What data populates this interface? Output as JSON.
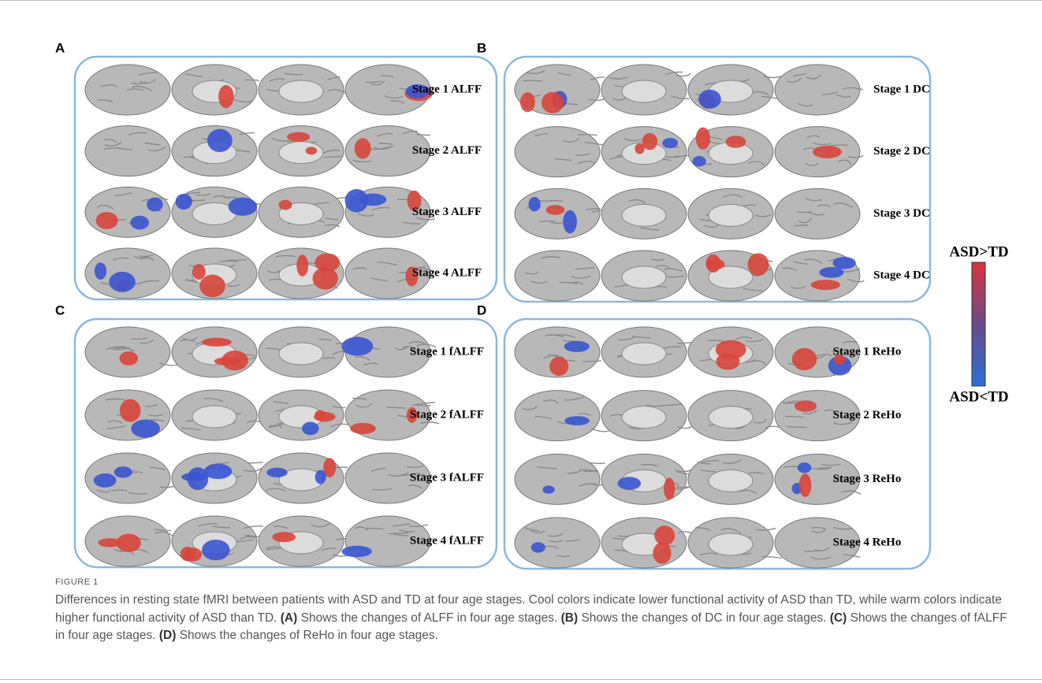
{
  "panels": [
    {
      "letter": "A",
      "rows": [
        "Stage 1 ALFF",
        "Stage 2 ALFF",
        "Stage 3 ALFF",
        "Stage 4 ALFF"
      ]
    },
    {
      "letter": "B",
      "rows": [
        "Stage 1 DC",
        "Stage 2 DC",
        "Stage 3 DC",
        "Stage 4 DC"
      ]
    },
    {
      "letter": "C",
      "rows": [
        "Stage 1 fALFF",
        "Stage 2 fALFF",
        "Stage 3 fALFF",
        "Stage 4 fALFF"
      ]
    },
    {
      "letter": "D",
      "rows": [
        "Stage 1 ReHo",
        "Stage 2 ReHo",
        "Stage 3 ReHo",
        "Stage 4 ReHo"
      ]
    }
  ],
  "colorbar": {
    "top": "ASD>TD",
    "bottom": "ASD<TD"
  },
  "caption": {
    "label": "FIGURE 1",
    "text": "Differences in resting state fMRI between patients with ASD and TD at four age stages. Cool colors indicate lower functional activity of ASD than TD, while warm colors indicate higher functional activity of ASD than TD.",
    "items": [
      {
        "letter": "(A)",
        "text": "Shows the changes of ALFF in four age stages."
      },
      {
        "letter": "(B)",
        "text": "Shows the changes of DC in four age stages."
      },
      {
        "letter": "(C)",
        "text": "Shows the changes of fALFF in four age stages."
      },
      {
        "letter": "(D)",
        "text": "Shows the changes of ReHo in four age stages."
      }
    ]
  }
}
